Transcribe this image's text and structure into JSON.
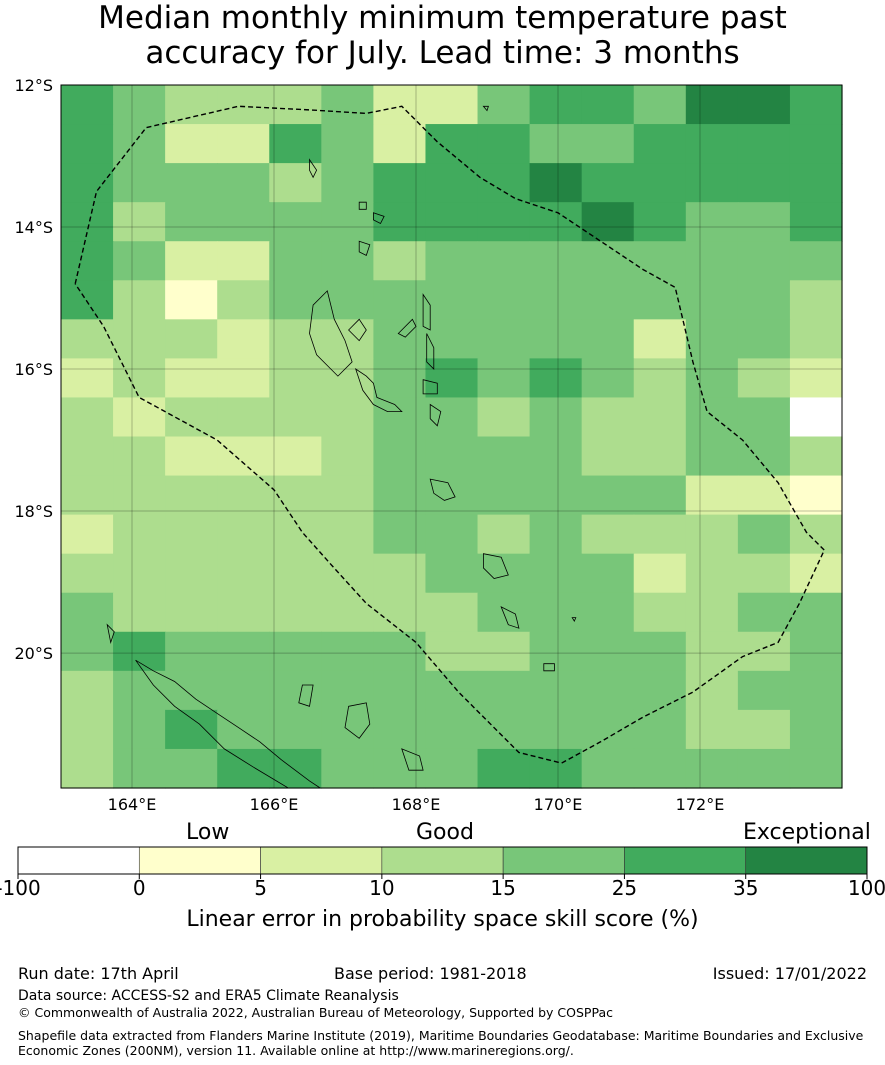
{
  "title": {
    "line1": "Median monthly minimum temperature past",
    "line2": "accuracy for July. Lead time: 3 months"
  },
  "map": {
    "lat_labels": [
      "12°S",
      "14°S",
      "16°S",
      "18°S",
      "20°S"
    ],
    "lon_labels": [
      "164°E",
      "166°E",
      "168°E",
      "170°E",
      "172°E"
    ],
    "extent": {
      "lon_min": 163.0,
      "lon_max": 174.0,
      "lat_max": -12.0,
      "lat_min": -21.9
    },
    "cell_size_deg": 0.833,
    "grid": [
      [
        5,
        4,
        3,
        3,
        3,
        4,
        2,
        2,
        4,
        5,
        5,
        4,
        6,
        6,
        5
      ],
      [
        5,
        4,
        2,
        2,
        5,
        4,
        2,
        5,
        5,
        4,
        4,
        5,
        5,
        5,
        5
      ],
      [
        5,
        4,
        4,
        4,
        3,
        4,
        5,
        5,
        5,
        6,
        5,
        5,
        5,
        5,
        5
      ],
      [
        5,
        3,
        4,
        4,
        4,
        4,
        5,
        5,
        5,
        5,
        6,
        5,
        4,
        4,
        5
      ],
      [
        5,
        4,
        2,
        2,
        4,
        4,
        3,
        4,
        4,
        4,
        4,
        4,
        4,
        4,
        4
      ],
      [
        5,
        3,
        1,
        3,
        4,
        4,
        4,
        4,
        4,
        4,
        4,
        4,
        4,
        4,
        3
      ],
      [
        3,
        3,
        3,
        2,
        3,
        3,
        4,
        4,
        4,
        4,
        4,
        2,
        4,
        4,
        3
      ],
      [
        2,
        3,
        2,
        2,
        3,
        3,
        4,
        5,
        4,
        5,
        4,
        3,
        4,
        3,
        2
      ],
      [
        3,
        2,
        3,
        3,
        3,
        3,
        4,
        4,
        3,
        4,
        3,
        3,
        4,
        4,
        0
      ],
      [
        3,
        3,
        2,
        2,
        2,
        3,
        4,
        4,
        4,
        4,
        3,
        3,
        4,
        4,
        3
      ],
      [
        3,
        3,
        3,
        3,
        3,
        3,
        4,
        4,
        4,
        4,
        4,
        4,
        2,
        2,
        1
      ],
      [
        2,
        3,
        3,
        3,
        3,
        3,
        4,
        4,
        3,
        4,
        3,
        3,
        3,
        4,
        3
      ],
      [
        3,
        3,
        3,
        3,
        3,
        3,
        3,
        4,
        4,
        4,
        4,
        2,
        3,
        3,
        2
      ],
      [
        4,
        3,
        3,
        3,
        3,
        3,
        3,
        3,
        4,
        4,
        4,
        3,
        3,
        4,
        4
      ],
      [
        4,
        5,
        4,
        4,
        4,
        4,
        4,
        3,
        3,
        4,
        4,
        4,
        3,
        3,
        4
      ],
      [
        3,
        4,
        4,
        4,
        4,
        4,
        4,
        4,
        4,
        4,
        4,
        4,
        3,
        4,
        4
      ],
      [
        3,
        4,
        5,
        4,
        4,
        4,
        4,
        4,
        4,
        4,
        4,
        4,
        3,
        3,
        4
      ],
      [
        3,
        4,
        4,
        5,
        5,
        4,
        4,
        4,
        5,
        5,
        4,
        4,
        4,
        4,
        4
      ]
    ],
    "eez_boundary": [
      [
        163.2,
        -14.8
      ],
      [
        163.5,
        -13.5
      ],
      [
        164.2,
        -12.6
      ],
      [
        165.5,
        -12.3
      ],
      [
        166.5,
        -12.35
      ],
      [
        167.3,
        -12.4
      ],
      [
        167.8,
        -12.3
      ],
      [
        168.3,
        -12.8
      ],
      [
        168.9,
        -13.3
      ],
      [
        169.4,
        -13.6
      ],
      [
        170.0,
        -13.8
      ],
      [
        170.6,
        -14.2
      ],
      [
        171.2,
        -14.6
      ],
      [
        171.65,
        -14.85
      ],
      [
        171.9,
        -15.9
      ],
      [
        172.1,
        -16.6
      ],
      [
        172.6,
        -17.0
      ],
      [
        173.1,
        -17.6
      ],
      [
        173.5,
        -18.3
      ],
      [
        173.75,
        -18.55
      ],
      [
        173.4,
        -19.3
      ],
      [
        173.1,
        -19.85
      ],
      [
        172.6,
        -20.05
      ],
      [
        171.9,
        -20.55
      ],
      [
        171.2,
        -20.9
      ],
      [
        170.6,
        -21.25
      ],
      [
        170.05,
        -21.55
      ],
      [
        169.45,
        -21.4
      ],
      [
        168.6,
        -20.55
      ],
      [
        168.0,
        -19.85
      ],
      [
        167.3,
        -19.3
      ],
      [
        166.8,
        -18.75
      ],
      [
        166.4,
        -18.3
      ],
      [
        166.0,
        -17.7
      ],
      [
        165.2,
        -17.0
      ],
      [
        164.1,
        -16.4
      ],
      [
        163.6,
        -15.4
      ],
      [
        163.2,
        -14.8
      ]
    ],
    "islands": [
      [
        [
          166.6,
          -15.8
        ],
        [
          166.5,
          -15.5
        ],
        [
          166.55,
          -15.1
        ],
        [
          166.75,
          -14.9
        ],
        [
          166.85,
          -15.3
        ],
        [
          167.0,
          -15.6
        ],
        [
          167.1,
          -15.9
        ],
        [
          166.9,
          -16.1
        ],
        [
          166.75,
          -15.95
        ],
        [
          166.6,
          -15.8
        ]
      ],
      [
        [
          167.05,
          -15.45
        ],
        [
          167.2,
          -15.3
        ],
        [
          167.3,
          -15.45
        ],
        [
          167.2,
          -15.6
        ],
        [
          167.05,
          -15.45
        ]
      ],
      [
        [
          167.75,
          -15.5
        ],
        [
          167.95,
          -15.3
        ],
        [
          168.0,
          -15.4
        ],
        [
          167.85,
          -15.55
        ],
        [
          167.75,
          -15.5
        ]
      ],
      [
        [
          168.1,
          -14.95
        ],
        [
          168.2,
          -15.1
        ],
        [
          168.2,
          -15.45
        ],
        [
          168.1,
          -15.4
        ],
        [
          168.1,
          -14.95
        ]
      ],
      [
        [
          168.15,
          -15.5
        ],
        [
          168.25,
          -15.7
        ],
        [
          168.25,
          -16.0
        ],
        [
          168.15,
          -15.9
        ],
        [
          168.15,
          -15.5
        ]
      ],
      [
        [
          167.15,
          -16.0
        ],
        [
          167.3,
          -16.1
        ],
        [
          167.4,
          -16.2
        ],
        [
          167.45,
          -16.4
        ],
        [
          167.7,
          -16.5
        ],
        [
          167.8,
          -16.6
        ],
        [
          167.6,
          -16.6
        ],
        [
          167.4,
          -16.5
        ],
        [
          167.25,
          -16.3
        ],
        [
          167.15,
          -16.0
        ]
      ],
      [
        [
          168.1,
          -16.15
        ],
        [
          168.3,
          -16.2
        ],
        [
          168.3,
          -16.35
        ],
        [
          168.1,
          -16.35
        ],
        [
          168.1,
          -16.15
        ]
      ],
      [
        [
          168.2,
          -16.5
        ],
        [
          168.35,
          -16.6
        ],
        [
          168.3,
          -16.8
        ],
        [
          168.2,
          -16.7
        ],
        [
          168.2,
          -16.5
        ]
      ],
      [
        [
          168.2,
          -17.55
        ],
        [
          168.45,
          -17.6
        ],
        [
          168.55,
          -17.8
        ],
        [
          168.4,
          -17.85
        ],
        [
          168.25,
          -17.75
        ],
        [
          168.2,
          -17.55
        ]
      ],
      [
        [
          168.95,
          -18.6
        ],
        [
          169.2,
          -18.65
        ],
        [
          169.3,
          -18.9
        ],
        [
          169.1,
          -18.95
        ],
        [
          168.95,
          -18.8
        ],
        [
          168.95,
          -18.6
        ]
      ],
      [
        [
          169.2,
          -19.35
        ],
        [
          169.4,
          -19.45
        ],
        [
          169.45,
          -19.65
        ],
        [
          169.3,
          -19.6
        ],
        [
          169.2,
          -19.35
        ]
      ],
      [
        [
          169.8,
          -20.15
        ],
        [
          169.95,
          -20.15
        ],
        [
          169.95,
          -20.25
        ],
        [
          169.8,
          -20.25
        ],
        [
          169.8,
          -20.15
        ]
      ],
      [
        [
          167.2,
          -14.2
        ],
        [
          167.35,
          -14.25
        ],
        [
          167.3,
          -14.4
        ],
        [
          167.2,
          -14.35
        ],
        [
          167.2,
          -14.2
        ]
      ],
      [
        [
          167.4,
          -13.8
        ],
        [
          167.55,
          -13.85
        ],
        [
          167.5,
          -13.95
        ],
        [
          167.4,
          -13.9
        ],
        [
          167.4,
          -13.8
        ]
      ],
      [
        [
          167.2,
          -13.65
        ],
        [
          167.3,
          -13.65
        ],
        [
          167.3,
          -13.75
        ],
        [
          167.2,
          -13.75
        ],
        [
          167.2,
          -13.65
        ]
      ],
      [
        [
          166.5,
          -13.05
        ],
        [
          166.6,
          -13.2
        ],
        [
          166.55,
          -13.3
        ],
        [
          166.5,
          -13.2
        ],
        [
          166.5,
          -13.05
        ]
      ],
      [
        [
          164.05,
          -20.1
        ],
        [
          164.3,
          -20.25
        ],
        [
          164.6,
          -20.4
        ],
        [
          164.9,
          -20.65
        ],
        [
          165.2,
          -20.85
        ],
        [
          165.5,
          -21.05
        ],
        [
          165.8,
          -21.25
        ],
        [
          166.1,
          -21.5
        ],
        [
          166.5,
          -21.8
        ],
        [
          166.65,
          -21.9
        ],
        [
          166.2,
          -21.9
        ],
        [
          165.7,
          -21.6
        ],
        [
          165.3,
          -21.35
        ],
        [
          164.95,
          -21.0
        ],
        [
          164.6,
          -20.75
        ],
        [
          164.3,
          -20.45
        ],
        [
          164.05,
          -20.1
        ]
      ],
      [
        [
          163.65,
          -19.6
        ],
        [
          163.75,
          -19.7
        ],
        [
          163.7,
          -19.85
        ],
        [
          163.65,
          -19.6
        ]
      ],
      [
        [
          166.4,
          -20.45
        ],
        [
          166.55,
          -20.45
        ],
        [
          166.5,
          -20.75
        ],
        [
          166.35,
          -20.7
        ],
        [
          166.4,
          -20.45
        ]
      ],
      [
        [
          167.05,
          -20.75
        ],
        [
          167.3,
          -20.7
        ],
        [
          167.35,
          -21.0
        ],
        [
          167.2,
          -21.2
        ],
        [
          167.0,
          -21.05
        ],
        [
          167.05,
          -20.75
        ]
      ],
      [
        [
          167.8,
          -21.35
        ],
        [
          168.05,
          -21.45
        ],
        [
          168.1,
          -21.65
        ],
        [
          167.9,
          -21.65
        ],
        [
          167.8,
          -21.35
        ]
      ],
      [
        [
          168.95,
          -12.3
        ],
        [
          169.02,
          -12.3
        ],
        [
          169.0,
          -12.36
        ],
        [
          168.95,
          -12.3
        ]
      ],
      [
        [
          170.2,
          -19.5
        ],
        [
          170.25,
          -19.5
        ],
        [
          170.23,
          -19.55
        ],
        [
          170.2,
          -19.5
        ]
      ]
    ]
  },
  "colorbar": {
    "category_labels": {
      "low": "Low",
      "good": "Good",
      "exceptional": "Exceptional"
    },
    "colors": [
      "#ffffff",
      "#ffffcc",
      "#d9f0a3",
      "#addd8e",
      "#78c679",
      "#41ab5d",
      "#238443"
    ],
    "tick_labels": [
      "-100",
      "0",
      "5",
      "10",
      "15",
      "25",
      "35",
      "100"
    ],
    "xlabel": "Linear error in probability space skill score (%)"
  },
  "footer": {
    "run_date": "Run date: 17th April",
    "base_period": "Base period: 1981-2018",
    "issued": "Issued: 17/01/2022",
    "data_source": "Data source: ACCESS-S2 and ERA5 Climate Reanalysis",
    "copyright": "© Commonwealth of Australia 2022, Australian Bureau of Meteorology, Supported by COSPPac",
    "shapefile1": "Shapefile data extracted from Flanders Marine Institute (2019), Maritime Boundaries Geodatabase: Maritime Boundaries and Exclusive",
    "shapefile2": "Economic Zones (200NM), version 11. Available online at http://www.marineregions.org/."
  }
}
